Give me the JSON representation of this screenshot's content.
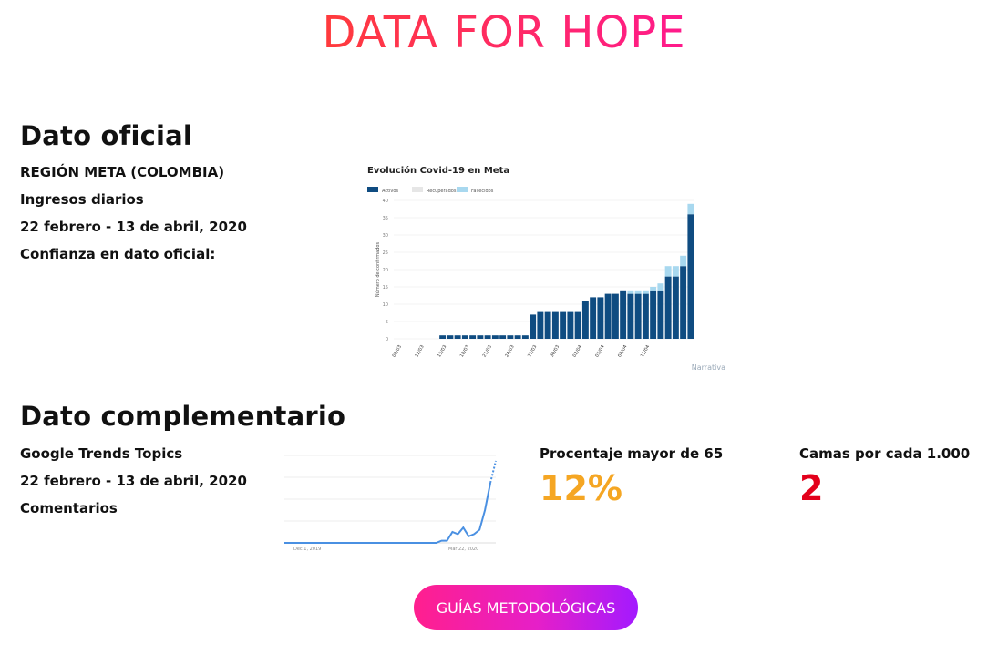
{
  "brand": {
    "name": "DATA FOR HOPE",
    "gradient_start": "#ff3b3b",
    "gradient_end": "#ff1a8c"
  },
  "official": {
    "heading": "Dato oficial",
    "region": "REGIÓN META (COLOMBIA)",
    "metric": "Ingresos diarios",
    "period": "22 febrero - 13 de abril, 2020",
    "confidence_label": "Confianza en dato oficial:"
  },
  "complementary": {
    "heading": "Dato complementario",
    "source": "Google Trends Topics",
    "period": "22 febrero - 13 de abril, 2020",
    "comments_label": "Comentarios"
  },
  "stats": {
    "elderly": {
      "label": "Procentaje mayor de 65",
      "value": "12%",
      "color": "#f5a623"
    },
    "beds": {
      "label": "Camas por cada 1.000",
      "value": "2",
      "color": "#e3001b"
    }
  },
  "cta": {
    "label": "GUÍAS METODOLÓGICAS"
  },
  "chart_data": [
    {
      "type": "bar",
      "title": "Evolución Covid-19 en Meta",
      "legend": [
        "Activos",
        "Recuperados",
        "Fallecidos"
      ],
      "legend_placement": "top-left",
      "ylabel": "Número de confirmados",
      "ylim": [
        0,
        40
      ],
      "yticks": [
        0,
        5,
        10,
        15,
        20,
        25,
        30,
        35,
        40
      ],
      "grid": true,
      "colors": {
        "Activos": "#0f4c81",
        "Recuperados": "#e6e6e6",
        "Fallecidos": "#a8d8ef"
      },
      "x_tick_labels": [
        "09/03",
        "12/03",
        "15/03",
        "18/03",
        "21/03",
        "24/03",
        "27/03",
        "30/03",
        "02/04",
        "05/04",
        "08/04",
        "11/04"
      ],
      "series": [
        {
          "name": "Activos",
          "values": [
            0,
            0,
            0,
            0,
            0,
            0,
            1,
            1,
            1,
            1,
            1,
            1,
            1,
            1,
            1,
            1,
            1,
            1,
            7,
            8,
            8,
            8,
            8,
            8,
            8,
            11,
            12,
            12,
            13,
            13,
            14,
            13,
            13,
            13,
            14,
            14,
            18,
            18,
            21,
            36
          ]
        },
        {
          "name": "Fallecidos",
          "values": [
            0,
            0,
            0,
            0,
            0,
            0,
            0,
            0,
            0,
            0,
            0,
            0,
            0,
            0,
            0,
            0,
            0,
            0,
            0,
            0,
            0,
            0,
            0,
            0,
            0,
            0,
            0,
            0,
            0,
            0,
            0,
            1,
            1,
            1,
            1,
            2,
            3,
            3,
            3,
            3
          ]
        }
      ],
      "source_note": "",
      "watermark": "Narrativa"
    },
    {
      "type": "line",
      "title": "",
      "x_tick_labels": [
        "Dec 1, 2019",
        "Mar 22, 2020"
      ],
      "values": [
        0,
        0,
        0,
        0,
        0,
        0,
        0,
        0,
        0,
        0,
        0,
        0,
        0,
        0,
        0,
        0,
        0,
        0,
        0,
        0,
        0,
        0,
        0,
        0,
        0,
        0,
        0,
        0,
        0,
        2,
        2,
        10,
        8,
        14,
        6,
        8,
        12,
        30,
        55,
        75
      ],
      "ylim": [
        0,
        80
      ],
      "color": "#4a90e2",
      "projection_from_index": 38
    }
  ]
}
